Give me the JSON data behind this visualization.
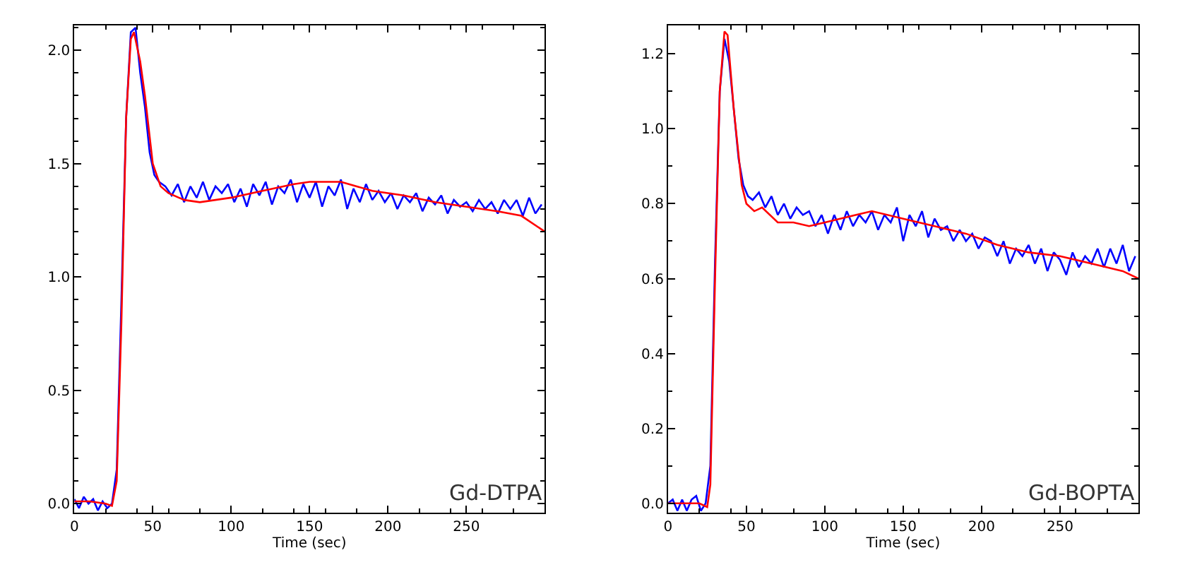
{
  "chart_data": [
    {
      "type": "line",
      "xlabel": "Time (sec)",
      "annotations": [
        "Gd-DTPA"
      ],
      "xlim": [
        0,
        300
      ],
      "xticks": [
        0,
        50,
        100,
        150,
        200,
        250
      ],
      "ylim": [
        -0.04,
        2.11
      ],
      "yticks": [
        {
          "value": 0,
          "label": "0.0"
        },
        {
          "value": 0.5,
          "label": "0.5"
        },
        {
          "value": 1,
          "label": "1.0"
        },
        {
          "value": 1.5,
          "label": "1.5"
        },
        {
          "value": 2,
          "label": "2.0"
        }
      ],
      "series": [
        {
          "color": "#0000ff",
          "x": [
            0,
            3,
            6,
            9,
            12,
            15,
            18,
            21,
            24,
            27,
            30,
            33,
            36,
            39,
            42,
            45,
            48,
            51,
            54,
            58,
            62,
            66,
            70,
            74,
            78,
            82,
            86,
            90,
            94,
            98,
            102,
            106,
            110,
            114,
            118,
            122,
            126,
            130,
            134,
            138,
            142,
            146,
            150,
            154,
            158,
            162,
            166,
            170,
            174,
            178,
            182,
            186,
            190,
            194,
            198,
            202,
            206,
            210,
            214,
            218,
            222,
            226,
            230,
            234,
            238,
            242,
            246,
            250,
            254,
            258,
            262,
            266,
            270,
            274,
            278,
            282,
            286,
            290,
            294,
            298
          ],
          "values": [
            0.02,
            -0.02,
            0.03,
            0.0,
            0.02,
            -0.03,
            0.01,
            -0.02,
            0.0,
            0.15,
            0.9,
            1.7,
            2.08,
            2.1,
            1.9,
            1.75,
            1.55,
            1.45,
            1.42,
            1.4,
            1.36,
            1.41,
            1.33,
            1.4,
            1.35,
            1.42,
            1.34,
            1.4,
            1.37,
            1.41,
            1.33,
            1.39,
            1.31,
            1.41,
            1.36,
            1.42,
            1.32,
            1.4,
            1.37,
            1.43,
            1.33,
            1.41,
            1.35,
            1.42,
            1.31,
            1.4,
            1.36,
            1.43,
            1.3,
            1.39,
            1.33,
            1.41,
            1.34,
            1.38,
            1.33,
            1.37,
            1.3,
            1.36,
            1.33,
            1.37,
            1.29,
            1.35,
            1.32,
            1.36,
            1.28,
            1.34,
            1.31,
            1.33,
            1.29,
            1.34,
            1.3,
            1.33,
            1.28,
            1.34,
            1.3,
            1.34,
            1.27,
            1.35,
            1.28,
            1.32
          ]
        },
        {
          "color": "#ff0000",
          "x": [
            0,
            10,
            20,
            24,
            27,
            30,
            33,
            36,
            38,
            42,
            45,
            50,
            55,
            60,
            70,
            80,
            100,
            120,
            140,
            150,
            170,
            190,
            210,
            230,
            250,
            270,
            285,
            300
          ],
          "values": [
            0.01,
            0.01,
            0.0,
            -0.01,
            0.1,
            0.8,
            1.7,
            2.05,
            2.08,
            1.95,
            1.8,
            1.5,
            1.4,
            1.37,
            1.34,
            1.33,
            1.35,
            1.38,
            1.41,
            1.42,
            1.42,
            1.38,
            1.36,
            1.33,
            1.31,
            1.29,
            1.27,
            1.2
          ]
        }
      ]
    },
    {
      "type": "line",
      "xlabel": "Time (sec)",
      "annotations": [
        "Gd-BOPTA"
      ],
      "xlim": [
        0,
        300
      ],
      "xticks": [
        0,
        50,
        100,
        150,
        200,
        250
      ],
      "ylim": [
        -0.025,
        1.276
      ],
      "yticks": [
        {
          "value": 0,
          "label": "0.0"
        },
        {
          "value": 0.2,
          "label": "0.2"
        },
        {
          "value": 0.4,
          "label": "0.4"
        },
        {
          "value": 0.6,
          "label": "0.6"
        },
        {
          "value": 0.8,
          "label": "0.8"
        },
        {
          "value": 1,
          "label": "1.0"
        },
        {
          "value": 1.2,
          "label": "1.2"
        }
      ],
      "series": [
        {
          "color": "#0000ff",
          "x": [
            0,
            3,
            6,
            9,
            12,
            15,
            18,
            21,
            24,
            27,
            30,
            33,
            36,
            39,
            42,
            45,
            48,
            51,
            54,
            58,
            62,
            66,
            70,
            74,
            78,
            82,
            86,
            90,
            94,
            98,
            102,
            106,
            110,
            114,
            118,
            122,
            126,
            130,
            134,
            138,
            142,
            146,
            150,
            154,
            158,
            162,
            166,
            170,
            174,
            178,
            182,
            186,
            190,
            194,
            198,
            202,
            206,
            210,
            214,
            218,
            222,
            226,
            230,
            234,
            238,
            242,
            246,
            250,
            254,
            258,
            262,
            266,
            270,
            274,
            278,
            282,
            286,
            290,
            294,
            298
          ],
          "values": [
            0.0,
            0.01,
            -0.02,
            0.01,
            -0.02,
            0.01,
            0.02,
            -0.02,
            0.0,
            0.1,
            0.65,
            1.1,
            1.24,
            1.18,
            1.05,
            0.92,
            0.85,
            0.82,
            0.81,
            0.83,
            0.79,
            0.82,
            0.77,
            0.8,
            0.76,
            0.79,
            0.77,
            0.78,
            0.74,
            0.77,
            0.72,
            0.77,
            0.73,
            0.78,
            0.74,
            0.77,
            0.75,
            0.78,
            0.73,
            0.77,
            0.75,
            0.79,
            0.7,
            0.77,
            0.74,
            0.78,
            0.71,
            0.76,
            0.73,
            0.74,
            0.7,
            0.73,
            0.7,
            0.72,
            0.68,
            0.71,
            0.7,
            0.66,
            0.7,
            0.64,
            0.68,
            0.66,
            0.69,
            0.64,
            0.68,
            0.62,
            0.67,
            0.65,
            0.61,
            0.67,
            0.63,
            0.66,
            0.64,
            0.68,
            0.63,
            0.68,
            0.64,
            0.69,
            0.62,
            0.66
          ]
        },
        {
          "color": "#ff0000",
          "x": [
            0,
            10,
            20,
            25,
            27,
            30,
            33,
            36,
            38,
            42,
            47,
            50,
            55,
            60,
            70,
            80,
            90,
            100,
            120,
            130,
            150,
            170,
            190,
            210,
            230,
            250,
            270,
            290,
            300
          ],
          "values": [
            0.0,
            0.0,
            0.0,
            -0.01,
            0.05,
            0.6,
            1.1,
            1.26,
            1.25,
            1.05,
            0.85,
            0.8,
            0.78,
            0.79,
            0.75,
            0.75,
            0.74,
            0.75,
            0.77,
            0.78,
            0.76,
            0.74,
            0.72,
            0.69,
            0.67,
            0.66,
            0.64,
            0.62,
            0.6
          ]
        }
      ]
    }
  ]
}
